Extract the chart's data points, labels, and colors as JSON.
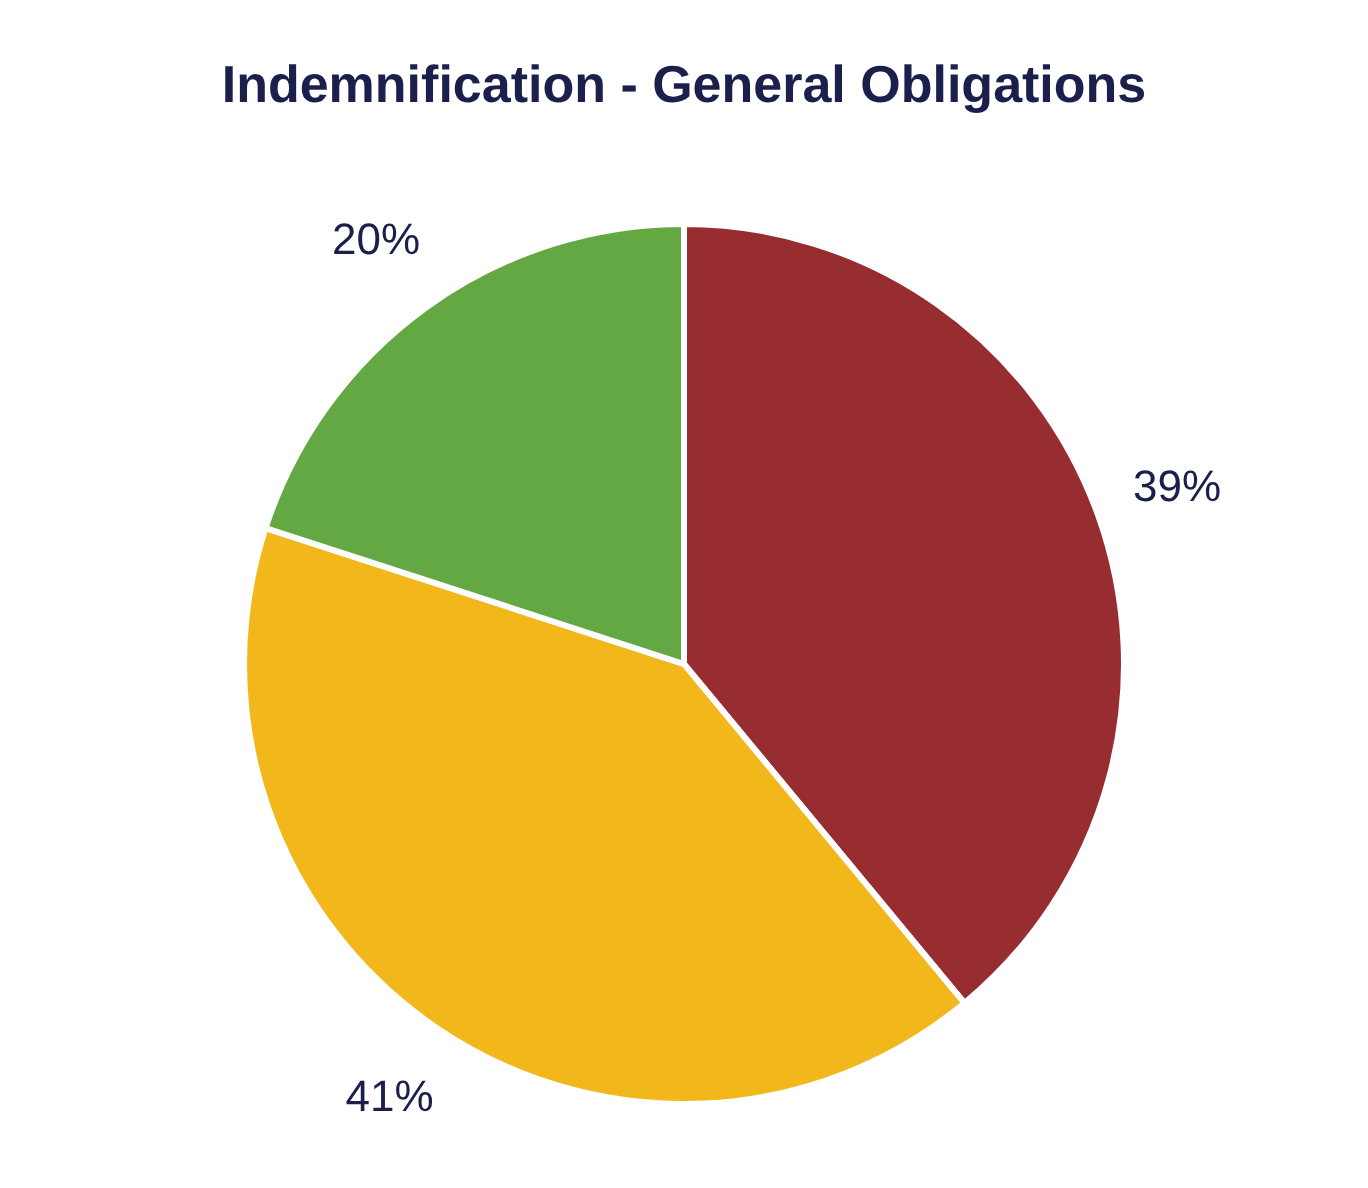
{
  "chart_data": {
    "type": "pie",
    "title": "Indemnification - General Obligations",
    "categories": [
      null,
      null,
      null
    ],
    "values": [
      39,
      41,
      20
    ],
    "colors": [
      "#972d31",
      "#f2b71b",
      "#64a844"
    ],
    "value_labels": [
      "39%",
      "41%",
      "20%"
    ],
    "legend": false
  }
}
